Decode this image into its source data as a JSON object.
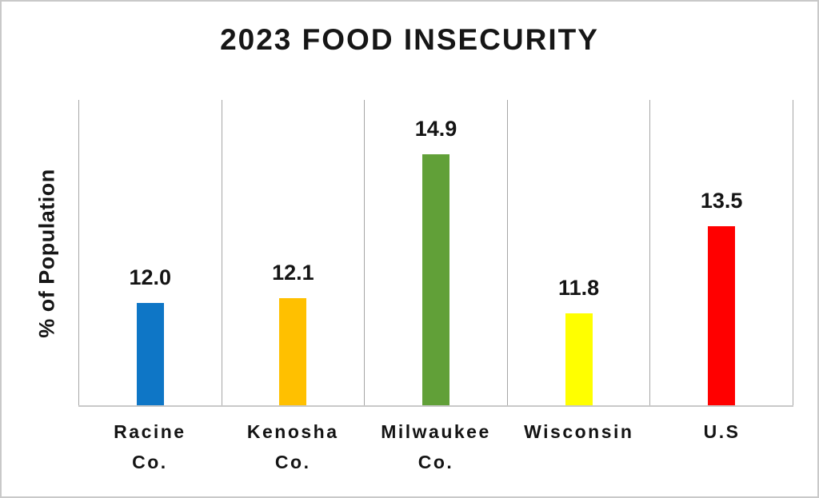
{
  "chart_data": {
    "type": "bar",
    "title": "2023 FOOD INSECURITY",
    "ylabel": "% of Population",
    "xlabel": "",
    "categories": [
      "Racine Co.",
      "Kenosha Co.",
      "Milwaukee Co.",
      "Wisconsin",
      "U.S"
    ],
    "category_label_lines": [
      [
        "Racine",
        "Co."
      ],
      [
        "Kenosha",
        "Co."
      ],
      [
        "Milwaukee",
        "Co."
      ],
      [
        "Wisconsin"
      ],
      [
        "U.S"
      ]
    ],
    "values": [
      12.0,
      12.1,
      14.9,
      11.8,
      13.5
    ],
    "value_labels": [
      "12.0",
      "12.1",
      "14.9",
      "11.8",
      "13.5"
    ],
    "bar_colors": [
      "#0E76C6",
      "#FFC000",
      "#61A038",
      "#FFFF00",
      "#FF0000"
    ],
    "ylim": [
      10,
      16
    ],
    "grid": "vertical-category-separators-only",
    "legend": "none",
    "data_labels_position": "above-bars"
  },
  "colors": {
    "background": "#ffffff",
    "text": "#141414",
    "gridline": "#a6a6a6",
    "axis_line": "#c9c9c9",
    "canvas_border": "#c9c9c9"
  }
}
